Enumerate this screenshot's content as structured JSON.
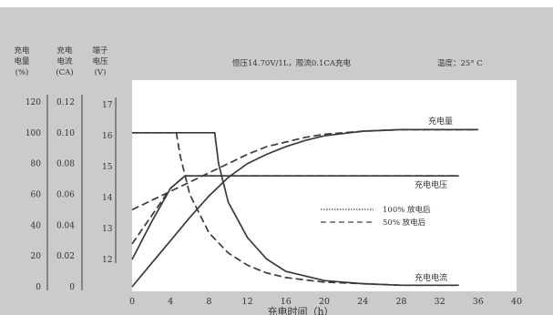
{
  "chart_data": {
    "type": "line",
    "title": "恒压14.70V/1L，限流0.1CA充电",
    "temperature": "温度：25° C",
    "xlabel": "充电时间（h）",
    "xlim": [
      0,
      40
    ],
    "xticks": [
      "0",
      "4",
      "8",
      "12",
      "16",
      "20",
      "24",
      "28",
      "32",
      "36",
      "40"
    ],
    "axes": [
      {
        "header": [
          "充电",
          "电量",
          "(%)"
        ],
        "ticks": [
          "0",
          "20",
          "40",
          "60",
          "80",
          "100",
          "120"
        ],
        "values": [
          0,
          20,
          40,
          60,
          80,
          100,
          120
        ]
      },
      {
        "header": [
          "充电",
          "电流",
          "(CA)"
        ],
        "ticks": [
          "0",
          "0.02",
          "0.04",
          "0.06",
          "0.08",
          "0.10",
          "0.12"
        ],
        "values": [
          0,
          0.02,
          0.04,
          0.06,
          0.08,
          0.1,
          0.12
        ]
      },
      {
        "header": [
          "端子",
          "电压",
          "(V)"
        ],
        "ticks": [
          "12",
          "13",
          "14",
          "15",
          "16",
          "17"
        ],
        "values": [
          12,
          13,
          14,
          15,
          16,
          17
        ]
      }
    ],
    "legend": {
      "placement": "center-right",
      "items": [
        {
          "label": "100% 放电后",
          "style": "dotted"
        },
        {
          "label": "50% 放电后",
          "style": "dashed"
        }
      ]
    },
    "curve_labels": {
      "charge": "充电量",
      "voltage": "充电电压",
      "current": "充电电流"
    },
    "series": [
      {
        "curve": "charge",
        "variant": "100% 放电后",
        "axis": "%",
        "x": [
          0,
          2,
          4,
          6,
          8,
          10,
          12,
          14,
          16,
          18,
          20,
          24,
          28,
          32,
          36
        ],
        "y": [
          0,
          15,
          30,
          45,
          59,
          71,
          80,
          86,
          91,
          95,
          98,
          101,
          102,
          102,
          102
        ]
      },
      {
        "curve": "charge",
        "variant": "50% 放电后",
        "axis": "%",
        "x": [
          0,
          2,
          4,
          6,
          8,
          10,
          12,
          14,
          16,
          18,
          20,
          24,
          28,
          32,
          36
        ],
        "y": [
          50,
          56,
          62,
          68,
          74,
          80,
          86,
          91,
          94,
          97,
          99,
          101,
          102,
          102,
          102
        ]
      },
      {
        "curve": "voltage",
        "variant": "100% 放电后",
        "axis": "V",
        "x": [
          0,
          2,
          4,
          5.5,
          8,
          12,
          20,
          28,
          34
        ],
        "y": [
          12.0,
          13.2,
          14.3,
          14.7,
          14.7,
          14.7,
          14.7,
          14.7,
          14.7
        ]
      },
      {
        "curve": "voltage",
        "variant": "50% 放电后",
        "axis": "V",
        "x": [
          0,
          2,
          4,
          5.5,
          8,
          12,
          20,
          28,
          34
        ],
        "y": [
          12.5,
          13.4,
          14.3,
          14.7,
          14.7,
          14.7,
          14.7,
          14.7,
          14.7
        ]
      },
      {
        "curve": "current",
        "variant": "100% 放电后",
        "axis": "CA",
        "x": [
          0,
          8.6,
          9,
          10,
          12,
          14,
          16,
          20,
          24,
          28,
          32,
          34
        ],
        "y": [
          0.1,
          0.1,
          0.08,
          0.055,
          0.032,
          0.018,
          0.01,
          0.004,
          0.002,
          0.001,
          0.001,
          0.001
        ]
      },
      {
        "curve": "current",
        "variant": "50% 放电后",
        "axis": "CA",
        "x": [
          0,
          4.6,
          5,
          6,
          8,
          10,
          12,
          14,
          16,
          20,
          24,
          28,
          32,
          34
        ],
        "y": [
          0.1,
          0.1,
          0.085,
          0.06,
          0.035,
          0.022,
          0.014,
          0.009,
          0.006,
          0.003,
          0.002,
          0.001,
          0.001,
          0.001
        ]
      }
    ]
  }
}
